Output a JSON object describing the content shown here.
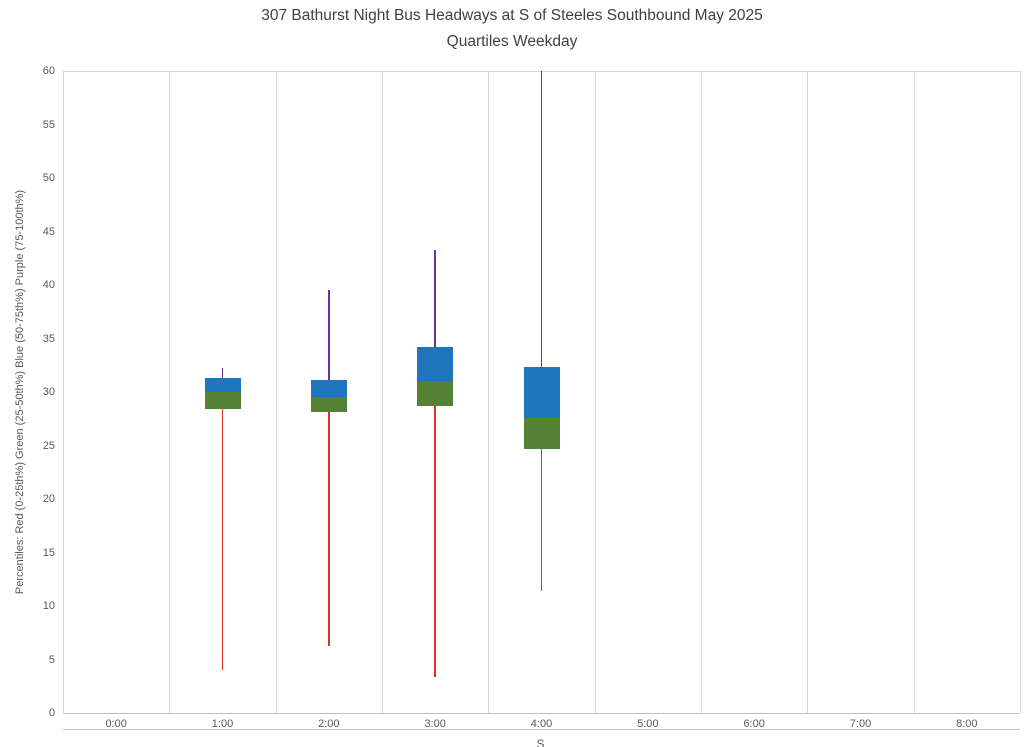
{
  "title": {
    "line1": "307 Bathurst Night Bus Headways at S of Steeles Southbound May 2025",
    "line2": "Quartiles Weekday"
  },
  "y_axis": {
    "title": "Percentiles:  Red (0-25th%)  Green (25-50th%)  Blue (50-75th%)  Purple (75-100th%)",
    "ticks": [
      "0",
      "5",
      "10",
      "15",
      "20",
      "25",
      "30",
      "35",
      "40",
      "45",
      "50",
      "55",
      "60"
    ]
  },
  "x_axis": {
    "categories": [
      "0:00",
      "1:00",
      "2:00",
      "3:00",
      "4:00",
      "5:00",
      "6:00",
      "7:00",
      "8:00"
    ],
    "partial_title": "S"
  },
  "colors": {
    "red_whisker": "#e03026",
    "green_box": "#548235",
    "blue_box": "#2076bc",
    "purple_whisker": "#7030a0",
    "gridline": "#d9d9d9",
    "text": "#595959",
    "title_text": "#404040"
  },
  "chart_data": {
    "type": "boxplot",
    "title": "307 Bathurst Night Bus Headways at S of Steeles Southbound May 2025",
    "subtitle": "Quartiles Weekday",
    "ylabel": "Percentiles:  Red (0-25th%)  Green (25-50th%)  Blue (50-75th%)  Purple (75-100th%)",
    "ylim": [
      0,
      60
    ],
    "ytick_step": 5,
    "grid": "vertical-category-boundaries, top-border",
    "legend": "encoded-in-ylabel",
    "categories": [
      "0:00",
      "1:00",
      "2:00",
      "3:00",
      "4:00",
      "5:00",
      "6:00",
      "7:00",
      "8:00"
    ],
    "segment_meaning": {
      "red_line": "0-25th percentile (min to Q1)",
      "green_box": "25-50th percentile (Q1 to median)",
      "blue_box": "50-75th percentile (median to Q3)",
      "purple_line": "75-100th percentile (Q3 to max)"
    },
    "boxes": [
      {
        "category": "1:00",
        "min": 4.0,
        "q1": 28.4,
        "median": 30.0,
        "q3": 31.3,
        "max": 32.2
      },
      {
        "category": "2:00",
        "min": 6.3,
        "q1": 28.1,
        "median": 29.5,
        "q3": 31.1,
        "max": 39.5
      },
      {
        "category": "3:00",
        "min": 3.4,
        "q1": 28.7,
        "median": 31.0,
        "q3": 34.2,
        "max": 43.3
      },
      {
        "category": "4:00",
        "min": 11.4,
        "q1": 24.7,
        "median": 27.6,
        "q3": 32.3,
        "max": 60.0
      }
    ]
  }
}
